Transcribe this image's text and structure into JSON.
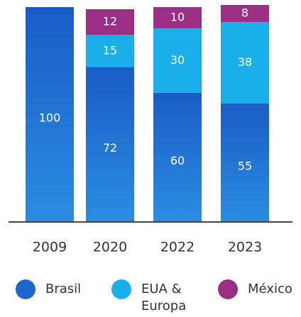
{
  "chart_data": {
    "type": "stacked_bar",
    "categories": [
      "2009",
      "2020",
      "2022",
      "2023"
    ],
    "series": [
      {
        "name": "Brasil",
        "color": "#1f66cc",
        "values": [
          100,
          72,
          60,
          55
        ]
      },
      {
        "name": "EUA & Europa",
        "color": "#1aaeea",
        "values": [
          null,
          15,
          30,
          38
        ]
      },
      {
        "name": "México",
        "color": "#9a2f83",
        "values": [
          null,
          12,
          10,
          8
        ]
      }
    ],
    "ylim": [
      0,
      100
    ]
  }
}
